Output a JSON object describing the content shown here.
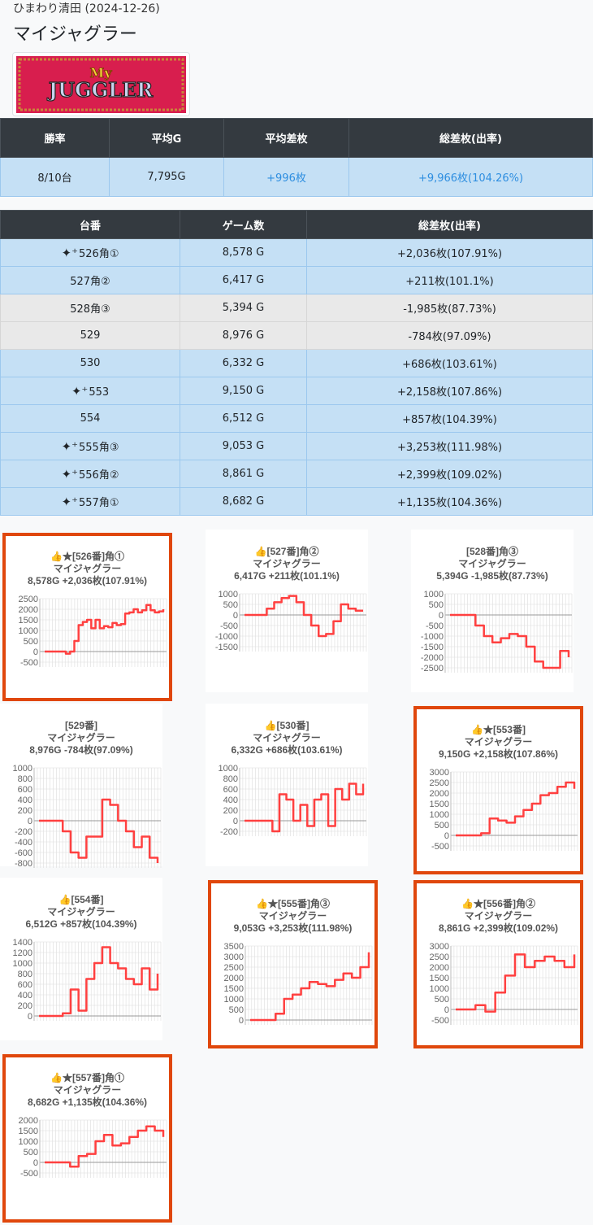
{
  "header": {
    "store_date": "ひまわり清田 (2024-12-26)",
    "title": "マイジャグラー",
    "logo_text": "My JUGGLER"
  },
  "summary": {
    "headers": [
      "勝率",
      "平均G",
      "平均差枚",
      "総差枚(出率)"
    ],
    "values": [
      "8/10台",
      "7,795G",
      "+996枚",
      "+9,966枚(104.26%)"
    ],
    "accent": "#2e8ee0"
  },
  "machines": {
    "headers": [
      "台番",
      "ゲーム数",
      "総差枚(出率)"
    ],
    "rows": [
      {
        "star": true,
        "no": "526角①",
        "games": "8,578 G",
        "diff": "+2,036枚(107.91%)"
      },
      {
        "star": false,
        "no": "527角②",
        "games": "6,417 G",
        "diff": "+211枚(101.1%)"
      },
      {
        "star": false,
        "no": "528角③",
        "games": "5,394 G",
        "diff": "-1,985枚(87.73%)",
        "neg": true
      },
      {
        "star": false,
        "no": "529",
        "games": "8,976 G",
        "diff": "-784枚(97.09%)",
        "neg": true
      },
      {
        "star": false,
        "no": "530",
        "games": "6,332 G",
        "diff": "+686枚(103.61%)"
      },
      {
        "star": true,
        "no": "553",
        "games": "9,150 G",
        "diff": "+2,158枚(107.86%)"
      },
      {
        "star": false,
        "no": "554",
        "games": "6,512 G",
        "diff": "+857枚(104.39%)"
      },
      {
        "star": true,
        "no": "555角③",
        "games": "9,053 G",
        "diff": "+3,253枚(111.98%)"
      },
      {
        "star": true,
        "no": "556角②",
        "games": "8,861 G",
        "diff": "+2,399枚(109.02%)"
      },
      {
        "star": true,
        "no": "557角①",
        "games": "8,682 G",
        "diff": "+1,135枚(104.36%)"
      }
    ]
  },
  "chart_data": [
    {
      "type": "line",
      "highlight": true,
      "title": "👍★[526番]角①",
      "machine": "マイジャグラー",
      "stats": "8,578G +2,036枚(107.91%)",
      "ylim": [
        -500,
        2500
      ],
      "step": 500,
      "values": [
        0,
        0,
        0,
        0,
        0,
        -100,
        0,
        500,
        1250,
        1400,
        1500,
        1100,
        1500,
        1100,
        1200,
        1150,
        1350,
        1250,
        1300,
        1800,
        1850,
        2000,
        1850,
        1950,
        2200,
        1950,
        1850,
        1900,
        2000
      ]
    },
    {
      "type": "line",
      "highlight": false,
      "title": "👍[527番]角②",
      "machine": "マイジャグラー",
      "stats": "6,417G +211枚(101.1%)",
      "ylim": [
        -1500,
        1000
      ],
      "step": 500,
      "values": [
        0,
        0,
        0,
        300,
        600,
        800,
        900,
        600,
        0,
        -500,
        -1000,
        -900,
        -300,
        500,
        300,
        200,
        200
      ]
    },
    {
      "type": "line",
      "highlight": false,
      "title": "[528番]角③",
      "machine": "マイジャグラー",
      "stats": "5,394G -1,985枚(87.73%)",
      "ylim": [
        -2500,
        1000
      ],
      "step": 500,
      "values": [
        0,
        0,
        0,
        -500,
        -1000,
        -1300,
        -1100,
        -900,
        -1000,
        -1500,
        -2200,
        -2500,
        -2500,
        -1700,
        -2000
      ]
    },
    {
      "type": "line",
      "highlight": false,
      "title": "[529番]",
      "machine": "マイジャグラー",
      "stats": "8,976G -784枚(97.09%)",
      "ylim": [
        -800,
        1000
      ],
      "step": 200,
      "values": [
        0,
        0,
        0,
        -200,
        -600,
        -700,
        -300,
        -300,
        400,
        300,
        0,
        -200,
        -500,
        -300,
        -700,
        -800
      ]
    },
    {
      "type": "line",
      "highlight": false,
      "title": "👍[530番]",
      "machine": "マイジャグラー",
      "stats": "6,332G +686枚(103.61%)",
      "ylim": [
        -200,
        1000
      ],
      "step": 200,
      "values": [
        0,
        0,
        0,
        0,
        -200,
        500,
        400,
        0,
        300,
        -100,
        400,
        500,
        -100,
        600,
        400,
        700,
        500,
        700
      ]
    },
    {
      "type": "line",
      "highlight": true,
      "title": "👍★[553番]",
      "machine": "マイジャグラー",
      "stats": "9,150G +2,158枚(107.86%)",
      "ylim": [
        -500,
        3000
      ],
      "step": 500,
      "values": [
        0,
        0,
        0,
        100,
        800,
        700,
        600,
        900,
        1200,
        1500,
        1900,
        2000,
        2300,
        2500,
        2200
      ]
    },
    {
      "type": "line",
      "highlight": false,
      "title": "👍[554番]",
      "machine": "マイジャグラー",
      "stats": "6,512G +857枚(104.39%)",
      "ylim": [
        0,
        1400
      ],
      "step": 200,
      "values": [
        0,
        0,
        0,
        50,
        500,
        100,
        700,
        1000,
        1300,
        1000,
        900,
        700,
        600,
        900,
        500,
        800
      ]
    },
    {
      "type": "line",
      "highlight": true,
      "title": "👍★[555番]角③",
      "machine": "マイジャグラー",
      "stats": "9,053G +3,253枚(111.98%)",
      "ylim": [
        0,
        3500
      ],
      "step": 500,
      "values": [
        0,
        0,
        0,
        300,
        1000,
        1200,
        1500,
        1800,
        1700,
        1600,
        1900,
        2200,
        2000,
        2500,
        3200
      ]
    },
    {
      "type": "line",
      "highlight": true,
      "title": "👍★[556番]角②",
      "machine": "マイジャグラー",
      "stats": "8,861G +2,399枚(109.02%)",
      "ylim": [
        -500,
        3000
      ],
      "step": 500,
      "values": [
        0,
        0,
        200,
        -100,
        800,
        1600,
        2600,
        2000,
        2300,
        2500,
        2300,
        2000,
        2600
      ]
    },
    {
      "type": "line",
      "highlight": true,
      "title": "👍★[557番]角①",
      "machine": "マイジャグラー",
      "stats": "8,682G +1,135枚(104.36%)",
      "ylim": [
        -500,
        2000
      ],
      "step": 500,
      "values": [
        0,
        0,
        0,
        -200,
        300,
        400,
        1000,
        1300,
        800,
        900,
        1200,
        1500,
        1700,
        1500,
        1200
      ]
    }
  ]
}
